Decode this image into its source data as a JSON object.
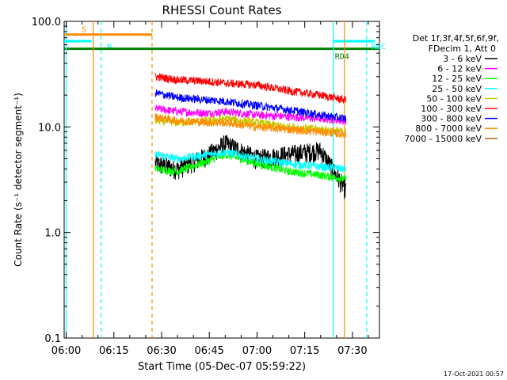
{
  "chart_data": {
    "type": "line",
    "title": "RHESSI Count Rates",
    "xlabel": "Start Time (05-Dec-07 05:59:22)",
    "ylabel": "Count Rate (s⁻¹ detector segment⁻¹)",
    "y_scale": "log",
    "ylim": [
      0.1,
      100.0
    ],
    "xlim": [
      "05:59:22",
      "07:38:30"
    ],
    "x_ticks": [
      "06:00",
      "06:15",
      "06:30",
      "06:45",
      "07:00",
      "07:15",
      "07:30"
    ],
    "y_ticks": [
      "0.1",
      "1.0",
      "10.0",
      "100.0"
    ],
    "legend_header": [
      "Det 1f,3f,4f,5f,6f,9f,",
      "FDecim 1, Att 0"
    ],
    "legend_position": "right",
    "timestamp": "17-Oct-2021 00:57",
    "data_window": {
      "start": "06:28:00",
      "end": "07:28:00"
    },
    "series": [
      {
        "name": "3 - 6 keV",
        "color": "#000000",
        "x": [
          "06:28",
          "06:35",
          "06:45",
          "06:50",
          "07:00",
          "07:10",
          "07:20",
          "07:28"
        ],
        "values": [
          4.5,
          4.0,
          5.5,
          7.0,
          5.0,
          5.5,
          6.0,
          2.5
        ]
      },
      {
        "name": "6 - 12 keV",
        "color": "#ff00ff",
        "x": [
          "06:28",
          "06:35",
          "06:45",
          "06:50",
          "07:00",
          "07:10",
          "07:20",
          "07:28"
        ],
        "values": [
          15.0,
          14.0,
          13.5,
          14.0,
          13.0,
          12.5,
          12.0,
          11.5
        ]
      },
      {
        "name": "12 - 25 keV",
        "color": "#00ff00",
        "x": [
          "06:28",
          "06:35",
          "06:45",
          "06:50",
          "07:00",
          "07:10",
          "07:20",
          "07:28"
        ],
        "values": [
          4.0,
          3.8,
          4.8,
          5.5,
          4.5,
          3.8,
          3.5,
          3.2
        ]
      },
      {
        "name": "25 - 50 keV",
        "color": "#00ffff",
        "x": [
          "06:28",
          "06:35",
          "06:45",
          "06:50",
          "07:00",
          "07:10",
          "07:20",
          "07:28"
        ],
        "values": [
          5.5,
          5.0,
          5.5,
          5.8,
          5.0,
          4.5,
          4.2,
          4.0
        ]
      },
      {
        "name": "50 - 100 keV",
        "color": "#c8c800",
        "x": [
          "06:28",
          "06:35",
          "06:45",
          "06:50",
          "07:00",
          "07:10",
          "07:20",
          "07:28"
        ],
        "values": [
          11.5,
          11.0,
          11.5,
          12.0,
          11.0,
          10.0,
          9.5,
          9.0
        ]
      },
      {
        "name": "100 - 300 keV",
        "color": "#ff0000",
        "x": [
          "06:28",
          "06:35",
          "06:45",
          "06:50",
          "07:00",
          "07:10",
          "07:20",
          "07:28"
        ],
        "values": [
          30.0,
          28.0,
          27.0,
          26.0,
          25.0,
          22.0,
          20.0,
          18.0
        ]
      },
      {
        "name": "300 - 800 keV",
        "color": "#0000ff",
        "x": [
          "06:28",
          "06:35",
          "06:45",
          "06:50",
          "07:00",
          "07:10",
          "07:20",
          "07:28"
        ],
        "values": [
          21.0,
          19.0,
          18.0,
          17.5,
          16.0,
          14.5,
          13.0,
          12.0
        ]
      },
      {
        "name": "800 - 7000 keV",
        "color": "#ff8c00",
        "x": [
          "06:28",
          "06:35",
          "06:45",
          "06:50",
          "07:00",
          "07:10",
          "07:20",
          "07:28"
        ],
        "values": [
          12.5,
          11.5,
          11.0,
          11.0,
          10.0,
          9.5,
          9.0,
          8.5
        ]
      },
      {
        "name": "7000 - 15000 keV",
        "color": "#b46400",
        "x": [],
        "values": []
      }
    ],
    "flags": [
      {
        "label": "S",
        "color": "#ff8c00",
        "start": "05:59:22",
        "end": "06:27:00",
        "level": 75
      },
      {
        "label": "N",
        "color": "#00ffff",
        "start": "05:59:22",
        "end": "06:08:00",
        "level": 65
      },
      {
        "label": "RD4",
        "color": "#008000",
        "start": "05:59:22",
        "end": "07:38:30",
        "level": 55
      },
      {
        "label": "RDC",
        "color": "#00ffff",
        "start": "07:24:00",
        "end": "07:37:00",
        "level": 65
      }
    ],
    "vertical_lines": [
      {
        "time": "06:00:00",
        "color": "#00ffff",
        "style": "solid"
      },
      {
        "time": "06:08:30",
        "color": "#ff8c00",
        "style": "solid"
      },
      {
        "time": "06:11:00",
        "color": "#00ffff",
        "style": "dashed"
      },
      {
        "time": "06:27:00",
        "color": "#ff8c00",
        "style": "dashed"
      },
      {
        "time": "07:24:00",
        "color": "#00ffff",
        "style": "solid"
      },
      {
        "time": "07:27:30",
        "color": "#ff8c00",
        "style": "solid"
      },
      {
        "time": "07:34:30",
        "color": "#00ffff",
        "style": "dashed"
      }
    ]
  }
}
